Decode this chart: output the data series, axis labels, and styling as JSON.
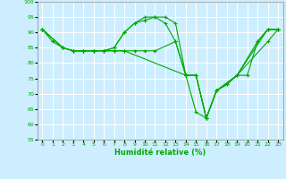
{
  "background_color": "#cceeff",
  "grid_color": "#ffffff",
  "line_color": "#00aa00",
  "xlabel": "Humidité relative (%)",
  "xlim": [
    -0.5,
    23.5
  ],
  "ylim": [
    55,
    100
  ],
  "yticks": [
    55,
    60,
    65,
    70,
    75,
    80,
    85,
    90,
    95,
    100
  ],
  "xticks": [
    0,
    1,
    2,
    3,
    4,
    5,
    6,
    7,
    8,
    9,
    10,
    11,
    12,
    13,
    14,
    15,
    16,
    17,
    18,
    19,
    20,
    21,
    22,
    23
  ],
  "series": [
    {
      "x": [
        0,
        1,
        2,
        3,
        4,
        5,
        6,
        7,
        8,
        9,
        10,
        11,
        12,
        13,
        14,
        15,
        16,
        17,
        19,
        20,
        21,
        22,
        23
      ],
      "y": [
        91,
        87,
        85,
        84,
        84,
        84,
        84,
        85,
        90,
        93,
        95,
        95,
        93,
        87,
        76,
        64,
        62,
        71,
        76,
        76,
        87,
        91,
        91
      ]
    },
    {
      "x": [
        0,
        2,
        3,
        4,
        5,
        6,
        7,
        8,
        9,
        10,
        11,
        12,
        13,
        14,
        15,
        16,
        17,
        19,
        22,
        23
      ],
      "y": [
        91,
        85,
        84,
        84,
        84,
        84,
        85,
        90,
        93,
        94,
        95,
        95,
        93,
        76,
        76,
        62,
        71,
        76,
        91,
        91
      ]
    },
    {
      "x": [
        0,
        2,
        3,
        4,
        5,
        6,
        7,
        8,
        9,
        10,
        11,
        13,
        14,
        15,
        16,
        17,
        18,
        19,
        22,
        23
      ],
      "y": [
        91,
        85,
        84,
        84,
        84,
        84,
        84,
        84,
        84,
        84,
        84,
        87,
        76,
        76,
        62,
        71,
        73,
        76,
        87,
        91
      ]
    },
    {
      "x": [
        0,
        2,
        3,
        4,
        5,
        6,
        7,
        8,
        14,
        15,
        16,
        17,
        18,
        19,
        21,
        22,
        23
      ],
      "y": [
        91,
        85,
        84,
        84,
        84,
        84,
        84,
        84,
        76,
        76,
        62,
        71,
        73,
        76,
        87,
        91,
        91
      ]
    }
  ]
}
